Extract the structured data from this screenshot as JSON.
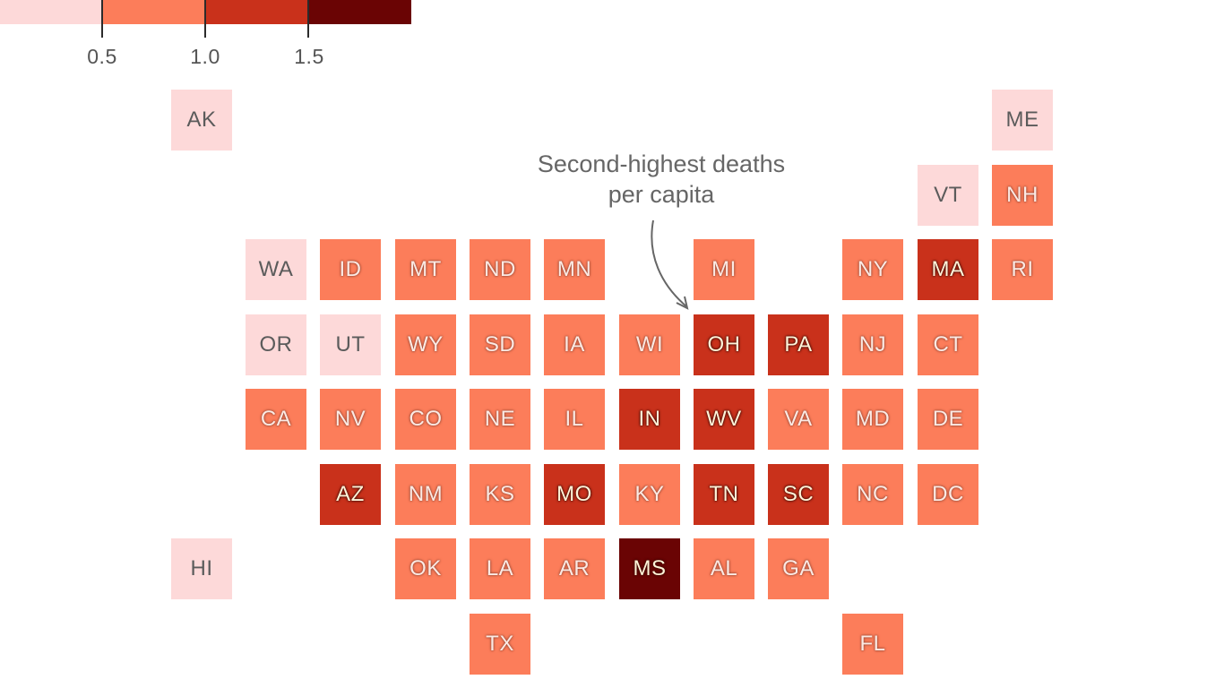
{
  "legend": {
    "ticks": [
      "0.5",
      "1.0",
      "1.5"
    ],
    "colors": [
      "#fdd9d9",
      "#fc7d5a",
      "#c9311b",
      "#6a0404"
    ]
  },
  "annotation": {
    "line1": "Second-highest deaths",
    "line2": "per capita"
  },
  "map_data": {
    "type": "tile-grid",
    "color_scale_bins": [
      "< 0.5",
      "0.5–1.0",
      "1.0–1.5",
      "> 1.5"
    ],
    "states": [
      {
        "abbr": "AK",
        "bin": 0
      },
      {
        "abbr": "ME",
        "bin": 0
      },
      {
        "abbr": "VT",
        "bin": 0
      },
      {
        "abbr": "NH",
        "bin": 1
      },
      {
        "abbr": "WA",
        "bin": 0
      },
      {
        "abbr": "ID",
        "bin": 1
      },
      {
        "abbr": "MT",
        "bin": 1
      },
      {
        "abbr": "ND",
        "bin": 1
      },
      {
        "abbr": "MN",
        "bin": 1
      },
      {
        "abbr": "MI",
        "bin": 1
      },
      {
        "abbr": "NY",
        "bin": 1
      },
      {
        "abbr": "MA",
        "bin": 2
      },
      {
        "abbr": "RI",
        "bin": 1
      },
      {
        "abbr": "OR",
        "bin": 0
      },
      {
        "abbr": "UT",
        "bin": 0
      },
      {
        "abbr": "WY",
        "bin": 1
      },
      {
        "abbr": "SD",
        "bin": 1
      },
      {
        "abbr": "IA",
        "bin": 1
      },
      {
        "abbr": "WI",
        "bin": 1
      },
      {
        "abbr": "OH",
        "bin": 2
      },
      {
        "abbr": "PA",
        "bin": 2
      },
      {
        "abbr": "NJ",
        "bin": 1
      },
      {
        "abbr": "CT",
        "bin": 1
      },
      {
        "abbr": "CA",
        "bin": 1
      },
      {
        "abbr": "NV",
        "bin": 1
      },
      {
        "abbr": "CO",
        "bin": 1
      },
      {
        "abbr": "NE",
        "bin": 1
      },
      {
        "abbr": "IL",
        "bin": 1
      },
      {
        "abbr": "IN",
        "bin": 2
      },
      {
        "abbr": "WV",
        "bin": 2
      },
      {
        "abbr": "VA",
        "bin": 1
      },
      {
        "abbr": "MD",
        "bin": 1
      },
      {
        "abbr": "DE",
        "bin": 1
      },
      {
        "abbr": "AZ",
        "bin": 2
      },
      {
        "abbr": "NM",
        "bin": 1
      },
      {
        "abbr": "KS",
        "bin": 1
      },
      {
        "abbr": "MO",
        "bin": 2
      },
      {
        "abbr": "KY",
        "bin": 1
      },
      {
        "abbr": "TN",
        "bin": 2
      },
      {
        "abbr": "SC",
        "bin": 2
      },
      {
        "abbr": "NC",
        "bin": 1
      },
      {
        "abbr": "DC",
        "bin": 1
      },
      {
        "abbr": "HI",
        "bin": 0
      },
      {
        "abbr": "OK",
        "bin": 1
      },
      {
        "abbr": "LA",
        "bin": 1
      },
      {
        "abbr": "AR",
        "bin": 1
      },
      {
        "abbr": "MS",
        "bin": 3
      },
      {
        "abbr": "AL",
        "bin": 1
      },
      {
        "abbr": "GA",
        "bin": 1
      },
      {
        "abbr": "TX",
        "bin": 1
      },
      {
        "abbr": "FL",
        "bin": 1
      }
    ]
  }
}
